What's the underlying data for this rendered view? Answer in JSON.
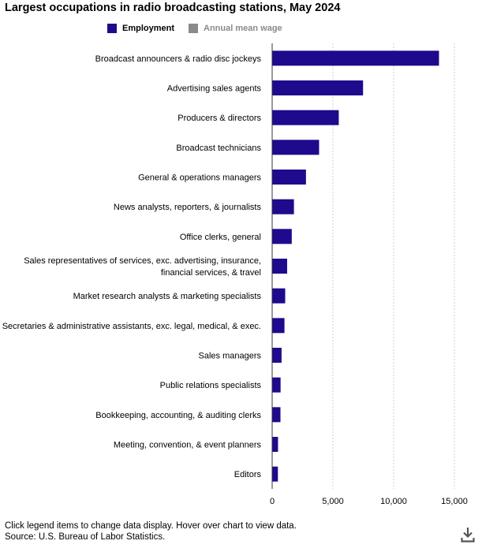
{
  "title": "Largest occupations in radio broadcasting stations, May 2024",
  "legend": [
    {
      "label": "Employment",
      "color": "#1e0a8c",
      "active": true
    },
    {
      "label": "Annual mean wage",
      "color": "#8a8a8a",
      "active": false
    }
  ],
  "chart_data": {
    "type": "bar",
    "orientation": "horizontal",
    "categories": [
      "Broadcast announcers & radio disc jockeys",
      "Advertising sales agents",
      "Producers & directors",
      "Broadcast technicians",
      "General & operations managers",
      "News analysts, reporters, & journalists",
      "Office clerks, general",
      "Sales representatives of services, exc. advertising, insurance, financial services, & travel",
      "Market research analysts & marketing specialists",
      "Secretaries & administrative assistants, exc. legal, medical, & exec.",
      "Sales managers",
      "Public relations specialists",
      "Bookkeeping, accounting, & auditing clerks",
      "Meeting, convention, & event planners",
      "Editors"
    ],
    "category_lines": [
      [
        "Broadcast announcers & radio disc jockeys"
      ],
      [
        "Advertising sales agents"
      ],
      [
        "Producers & directors"
      ],
      [
        "Broadcast technicians"
      ],
      [
        "General & operations managers"
      ],
      [
        "News analysts, reporters, & journalists"
      ],
      [
        "Office clerks, general"
      ],
      [
        "Sales representatives of services, exc. advertising, insurance,",
        "financial services, & travel"
      ],
      [
        "Market research analysts & marketing specialists"
      ],
      [
        "Secretaries & administrative assistants, exc. legal, medical, & exec."
      ],
      [
        "Sales managers"
      ],
      [
        "Public relations specialists"
      ],
      [
        "Bookkeeping, accounting, & auditing clerks"
      ],
      [
        "Meeting, convention, & event planners"
      ],
      [
        "Editors"
      ]
    ],
    "series": [
      {
        "name": "Employment",
        "values": [
          13700,
          7450,
          5450,
          3830,
          2750,
          1760,
          1580,
          1200,
          1040,
          980,
          740,
          660,
          650,
          450,
          440
        ]
      }
    ],
    "xlim": [
      0,
      15000
    ],
    "xticks": [
      0,
      5000,
      10000,
      15000
    ],
    "xtick_labels": [
      "0",
      "5,000",
      "10,000",
      "15,000"
    ],
    "grid": "vertical dotted",
    "bar_color": "#1e0a8c"
  },
  "footer": {
    "note": "Click legend items to change data display. Hover over chart to view data.",
    "source": "Source: U.S. Bureau of Labor Statistics."
  },
  "icons": {
    "download": "download-icon"
  }
}
